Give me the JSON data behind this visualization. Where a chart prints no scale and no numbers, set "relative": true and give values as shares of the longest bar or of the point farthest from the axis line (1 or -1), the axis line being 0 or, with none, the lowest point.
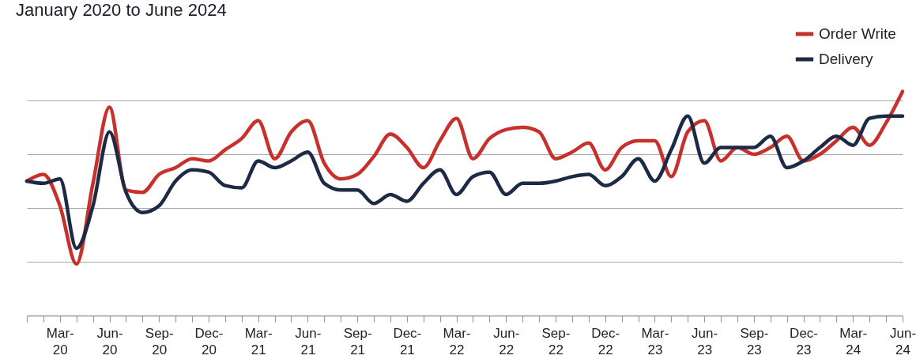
{
  "chart_data": {
    "type": "line",
    "title": "January 2020 to June 2024",
    "relative": true,
    "grid": "y",
    "legend": "top right",
    "line_style": "solid",
    "marker": "none",
    "categories": [
      null,
      null,
      "Mar-20",
      null,
      null,
      "Jun-20",
      null,
      null,
      "Sep-20",
      null,
      null,
      "Dec-20",
      null,
      null,
      "Mar-21",
      null,
      null,
      "Jun-21",
      null,
      null,
      "Sep-21",
      null,
      null,
      "Dec-21",
      null,
      null,
      "Mar-22",
      null,
      null,
      "Jun-22",
      null,
      null,
      "Sep-22",
      null,
      null,
      "Dec-22",
      null,
      null,
      "Mar-23",
      null,
      null,
      "Jun-23",
      null,
      null,
      "Sep-23",
      null,
      null,
      "Dec-23",
      null,
      null,
      "Mar-24",
      null,
      null,
      "Jun-24"
    ],
    "series": [
      {
        "name": "Order Write",
        "color": "#c8312b",
        "values": [
          0.6,
          0.63,
          0.49,
          0.23,
          0.59,
          0.93,
          0.56,
          0.55,
          0.63,
          0.66,
          0.7,
          0.69,
          0.74,
          0.79,
          0.87,
          0.7,
          0.82,
          0.87,
          0.68,
          0.61,
          0.63,
          0.71,
          0.81,
          0.75,
          0.66,
          0.78,
          0.88,
          0.7,
          0.79,
          0.83,
          0.84,
          0.82,
          0.7,
          0.73,
          0.77,
          0.65,
          0.75,
          0.78,
          0.78,
          0.62,
          0.82,
          0.87,
          0.69,
          0.75,
          0.72,
          0.75,
          0.8,
          0.69,
          0.72,
          0.78,
          0.84,
          0.76,
          0.86,
          1
        ]
      },
      {
        "name": "Delivery",
        "color": "#1c2a45",
        "values": [
          0.6,
          0.59,
          0.61,
          0.3,
          0.49,
          0.82,
          0.55,
          0.46,
          0.49,
          0.6,
          0.65,
          0.64,
          0.58,
          0.57,
          0.69,
          0.66,
          0.69,
          0.73,
          0.59,
          0.56,
          0.56,
          0.5,
          0.54,
          0.51,
          0.59,
          0.65,
          0.54,
          0.62,
          0.64,
          0.54,
          0.59,
          0.59,
          0.6,
          0.62,
          0.63,
          0.58,
          0.62,
          0.7,
          0.6,
          0.74,
          0.89,
          0.68,
          0.75,
          0.75,
          0.75,
          0.8,
          0.66,
          0.69,
          0.75,
          0.8,
          0.76,
          0.88,
          0.89,
          0.89
        ]
      }
    ]
  }
}
